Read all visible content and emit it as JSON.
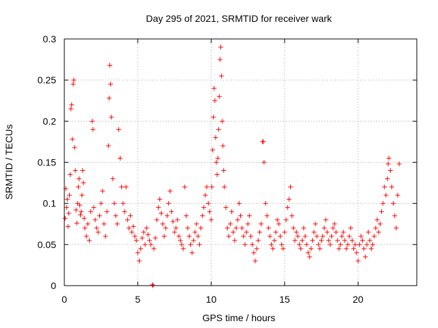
{
  "chart_data": {
    "type": "scatter",
    "title": "Day 295 of 2021, SRMTID for receiver wark",
    "xlabel": "GPS time / hours",
    "ylabel": "SRMTID / TECUs",
    "xlim": [
      0,
      24
    ],
    "ylim": [
      0,
      0.3
    ],
    "x_ticks": [
      0,
      5,
      10,
      15,
      20
    ],
    "x_tick_labels": [
      "0",
      "5",
      "10",
      "15",
      "20"
    ],
    "y_ticks": [
      0,
      0.05,
      0.1,
      0.15,
      0.2,
      0.25,
      0.3
    ],
    "y_tick_labels": [
      "0",
      "0.05",
      "0.1",
      "0.15",
      "0.2",
      "0.25",
      "0.3"
    ],
    "grid": true,
    "marker": "plus",
    "color": "#ff0000",
    "series": [
      {
        "name": "SRMTID",
        "points": [
          [
            0.05,
            0.082
          ],
          [
            0.1,
            0.118
          ],
          [
            0.15,
            0.095
          ],
          [
            0.2,
            0.105
          ],
          [
            0.25,
            0.072
          ],
          [
            0.3,
            0.088
          ],
          [
            0.35,
            0.11
          ],
          [
            0.4,
            0.135
          ],
          [
            0.45,
            0.215
          ],
          [
            0.5,
            0.22
          ],
          [
            0.55,
            0.178
          ],
          [
            0.6,
            0.245
          ],
          [
            0.65,
            0.25
          ],
          [
            0.7,
            0.168
          ],
          [
            0.75,
            0.14
          ],
          [
            0.8,
            0.092
          ],
          [
            0.85,
            0.076
          ],
          [
            0.9,
            0.1
          ],
          [
            0.95,
            0.12
          ],
          [
            1.0,
            0.13
          ],
          [
            1.05,
            0.098
          ],
          [
            1.1,
            0.086
          ],
          [
            1.15,
            0.09
          ],
          [
            1.2,
            0.11
          ],
          [
            1.25,
            0.14
          ],
          [
            1.3,
            0.125
          ],
          [
            1.35,
            0.082
          ],
          [
            1.4,
            0.07
          ],
          [
            1.5,
            0.06
          ],
          [
            1.6,
            0.075
          ],
          [
            1.7,
            0.055
          ],
          [
            1.8,
            0.09
          ],
          [
            1.9,
            0.2
          ],
          [
            1.95,
            0.19
          ],
          [
            2.0,
            0.095
          ],
          [
            2.1,
            0.08
          ],
          [
            2.2,
            0.07
          ],
          [
            2.3,
            0.065
          ],
          [
            2.4,
            0.085
          ],
          [
            2.5,
            0.1
          ],
          [
            2.6,
            0.115
          ],
          [
            2.7,
            0.075
          ],
          [
            2.8,
            0.06
          ],
          [
            2.9,
            0.09
          ],
          [
            3.0,
            0.17
          ],
          [
            3.05,
            0.228
          ],
          [
            3.1,
            0.268
          ],
          [
            3.15,
            0.245
          ],
          [
            3.2,
            0.205
          ],
          [
            3.3,
            0.13
          ],
          [
            3.4,
            0.1
          ],
          [
            3.5,
            0.085
          ],
          [
            3.6,
            0.075
          ],
          [
            3.7,
            0.19
          ],
          [
            3.8,
            0.155
          ],
          [
            3.9,
            0.12
          ],
          [
            4.0,
            0.1
          ],
          [
            4.1,
            0.09
          ],
          [
            4.2,
            0.12
          ],
          [
            4.3,
            0.08
          ],
          [
            4.4,
            0.07
          ],
          [
            4.5,
            0.085
          ],
          [
            4.6,
            0.065
          ],
          [
            4.7,
            0.072
          ],
          [
            4.8,
            0.06
          ],
          [
            4.9,
            0.055
          ],
          [
            5.0,
            0.04
          ],
          [
            5.1,
            0.03
          ],
          [
            5.2,
            0.045
          ],
          [
            5.3,
            0.058
          ],
          [
            5.4,
            0.065
          ],
          [
            5.5,
            0.05
          ],
          [
            5.6,
            0.07
          ],
          [
            5.7,
            0.062
          ],
          [
            5.8,
            0.055
          ],
          [
            5.9,
            0.05
          ],
          [
            6.0,
            0.001
          ],
          [
            6.05,
            0.0
          ],
          [
            6.1,
            0.045
          ],
          [
            6.2,
            0.058
          ],
          [
            6.3,
            0.08
          ],
          [
            6.4,
            0.095
          ],
          [
            6.5,
            0.105
          ],
          [
            6.6,
            0.088
          ],
          [
            6.7,
            0.075
          ],
          [
            6.8,
            0.06
          ],
          [
            6.9,
            0.07
          ],
          [
            7.0,
            0.085
          ],
          [
            7.1,
            0.1
          ],
          [
            7.2,
            0.115
          ],
          [
            7.3,
            0.09
          ],
          [
            7.4,
            0.078
          ],
          [
            7.5,
            0.065
          ],
          [
            7.6,
            0.07
          ],
          [
            7.7,
            0.08
          ],
          [
            7.8,
            0.06
          ],
          [
            7.9,
            0.055
          ],
          [
            8.0,
            0.05
          ],
          [
            8.1,
            0.045
          ],
          [
            8.2,
            0.12
          ],
          [
            8.3,
            0.085
          ],
          [
            8.4,
            0.07
          ],
          [
            8.5,
            0.06
          ],
          [
            8.6,
            0.05
          ],
          [
            8.7,
            0.04
          ],
          [
            8.8,
            0.055
          ],
          [
            8.9,
            0.065
          ],
          [
            9.0,
            0.075
          ],
          [
            9.1,
            0.06
          ],
          [
            9.2,
            0.05
          ],
          [
            9.3,
            0.07
          ],
          [
            9.4,
            0.085
          ],
          [
            9.5,
            0.095
          ],
          [
            9.6,
            0.11
          ],
          [
            9.7,
            0.12
          ],
          [
            9.8,
            0.1
          ],
          [
            9.9,
            0.09
          ],
          [
            10.0,
            0.08
          ],
          [
            10.05,
            0.12
          ],
          [
            10.1,
            0.165
          ],
          [
            10.15,
            0.205
          ],
          [
            10.2,
            0.24
          ],
          [
            10.25,
            0.225
          ],
          [
            10.3,
            0.18
          ],
          [
            10.35,
            0.15
          ],
          [
            10.4,
            0.135
          ],
          [
            10.45,
            0.155
          ],
          [
            10.5,
            0.19
          ],
          [
            10.55,
            0.23
          ],
          [
            10.6,
            0.275
          ],
          [
            10.65,
            0.29
          ],
          [
            10.7,
            0.255
          ],
          [
            10.75,
            0.2
          ],
          [
            10.8,
            0.17
          ],
          [
            10.85,
            0.14
          ],
          [
            10.9,
            0.12
          ],
          [
            11.0,
            0.095
          ],
          [
            11.1,
            0.07
          ],
          [
            11.2,
            0.06
          ],
          [
            11.3,
            0.075
          ],
          [
            11.4,
            0.09
          ],
          [
            11.5,
            0.065
          ],
          [
            11.6,
            0.055
          ],
          [
            11.7,
            0.07
          ],
          [
            11.8,
            0.08
          ],
          [
            11.9,
            0.1
          ],
          [
            12.0,
            0.085
          ],
          [
            12.1,
            0.07
          ],
          [
            12.2,
            0.06
          ],
          [
            12.3,
            0.05
          ],
          [
            12.4,
            0.065
          ],
          [
            12.5,
            0.075
          ],
          [
            12.6,
            0.085
          ],
          [
            12.7,
            0.06
          ],
          [
            12.8,
            0.05
          ],
          [
            12.9,
            0.04
          ],
          [
            13.0,
            0.03
          ],
          [
            13.1,
            0.045
          ],
          [
            13.2,
            0.055
          ],
          [
            13.3,
            0.065
          ],
          [
            13.4,
            0.075
          ],
          [
            13.5,
            0.175
          ],
          [
            13.55,
            0.175
          ],
          [
            13.6,
            0.15
          ],
          [
            13.7,
            0.1
          ],
          [
            13.8,
            0.085
          ],
          [
            13.9,
            0.07
          ],
          [
            14.0,
            0.06
          ],
          [
            14.1,
            0.05
          ],
          [
            14.2,
            0.045
          ],
          [
            14.3,
            0.055
          ],
          [
            14.4,
            0.065
          ],
          [
            14.5,
            0.08
          ],
          [
            14.6,
            0.075
          ],
          [
            14.7,
            0.06
          ],
          [
            14.8,
            0.05
          ],
          [
            14.9,
            0.045
          ],
          [
            15.0,
            0.065
          ],
          [
            15.1,
            0.08
          ],
          [
            15.2,
            0.095
          ],
          [
            15.3,
            0.105
          ],
          [
            15.4,
            0.12
          ],
          [
            15.5,
            0.085
          ],
          [
            15.6,
            0.07
          ],
          [
            15.7,
            0.055
          ],
          [
            15.8,
            0.065
          ],
          [
            15.9,
            0.06
          ],
          [
            16.0,
            0.05
          ],
          [
            16.1,
            0.045
          ],
          [
            16.2,
            0.055
          ],
          [
            16.3,
            0.07
          ],
          [
            16.4,
            0.06
          ],
          [
            16.5,
            0.05
          ],
          [
            16.6,
            0.04
          ],
          [
            16.7,
            0.035
          ],
          [
            16.8,
            0.045
          ],
          [
            16.9,
            0.055
          ],
          [
            17.0,
            0.065
          ],
          [
            17.1,
            0.075
          ],
          [
            17.2,
            0.06
          ],
          [
            17.3,
            0.05
          ],
          [
            17.4,
            0.045
          ],
          [
            17.5,
            0.055
          ],
          [
            17.6,
            0.06
          ],
          [
            17.7,
            0.07
          ],
          [
            17.8,
            0.08
          ],
          [
            17.9,
            0.065
          ],
          [
            18.0,
            0.055
          ],
          [
            18.1,
            0.05
          ],
          [
            18.2,
            0.06
          ],
          [
            18.3,
            0.07
          ],
          [
            18.4,
            0.075
          ],
          [
            18.5,
            0.065
          ],
          [
            18.6,
            0.055
          ],
          [
            18.7,
            0.045
          ],
          [
            18.8,
            0.05
          ],
          [
            18.9,
            0.06
          ],
          [
            19.0,
            0.065
          ],
          [
            19.1,
            0.055
          ],
          [
            19.2,
            0.045
          ],
          [
            19.3,
            0.05
          ],
          [
            19.4,
            0.06
          ],
          [
            19.5,
            0.07
          ],
          [
            19.6,
            0.055
          ],
          [
            19.7,
            0.045
          ],
          [
            19.8,
            0.05
          ],
          [
            19.9,
            0.04
          ],
          [
            20.0,
            0.03
          ],
          [
            20.1,
            0.05
          ],
          [
            20.2,
            0.06
          ],
          [
            20.3,
            0.055
          ],
          [
            20.4,
            0.045
          ],
          [
            20.5,
            0.035
          ],
          [
            20.6,
            0.05
          ],
          [
            20.7,
            0.065
          ],
          [
            20.8,
            0.055
          ],
          [
            20.9,
            0.045
          ],
          [
            21.0,
            0.05
          ],
          [
            21.1,
            0.06
          ],
          [
            21.2,
            0.07
          ],
          [
            21.3,
            0.08
          ],
          [
            21.4,
            0.065
          ],
          [
            21.5,
            0.075
          ],
          [
            21.6,
            0.09
          ],
          [
            21.7,
            0.1
          ],
          [
            21.8,
            0.12
          ],
          [
            21.9,
            0.11
          ],
          [
            22.0,
            0.13
          ],
          [
            22.05,
            0.148
          ],
          [
            22.1,
            0.155
          ],
          [
            22.2,
            0.14
          ],
          [
            22.3,
            0.12
          ],
          [
            22.4,
            0.1
          ],
          [
            22.5,
            0.085
          ],
          [
            22.6,
            0.07
          ],
          [
            22.7,
            0.11
          ],
          [
            22.8,
            0.148
          ]
        ]
      }
    ]
  }
}
